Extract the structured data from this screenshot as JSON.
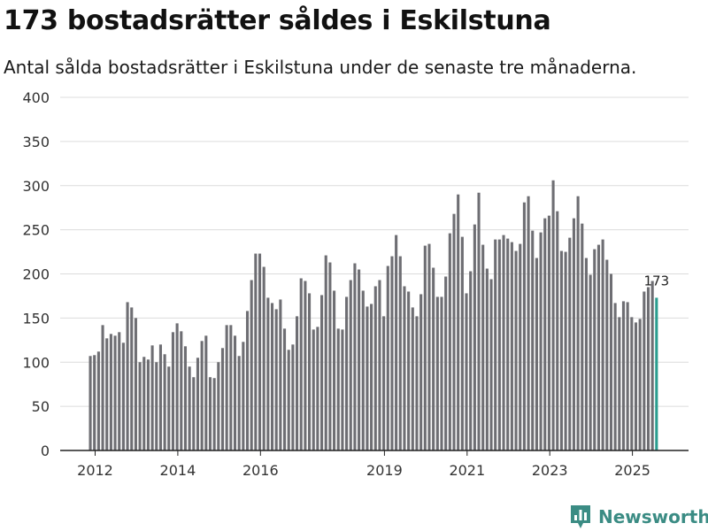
{
  "header": {
    "title": "173 bostadsrätter såldes i Eskilstuna",
    "subtitle": "Antal sålda bostadsrätter i Eskilstuna under de senaste tre månaderna."
  },
  "brand": {
    "name": "Newsworthy",
    "logo_icon": "bar-chart-icon",
    "color": "#3b8c84"
  },
  "chart_data": {
    "type": "bar",
    "title": "173 bostadsrätter såldes i Eskilstuna",
    "xlabel": "",
    "ylabel": "",
    "ylim": [
      0,
      400
    ],
    "yticks": [
      0,
      50,
      100,
      150,
      200,
      250,
      300,
      350,
      400
    ],
    "xticks": [
      "2012",
      "2014",
      "2016",
      "2019",
      "2021",
      "2023",
      "2025"
    ],
    "xtick_positions": [
      1.5,
      21.5,
      41.5,
      71.5,
      91.5,
      111.5,
      131.5
    ],
    "grid": true,
    "bar_color": "#6e6e73",
    "highlight_color": "#2a9d8f",
    "annotation": {
      "label": "173",
      "index": 137
    },
    "values": [
      107,
      108,
      112,
      142,
      127,
      132,
      130,
      134,
      122,
      168,
      162,
      150,
      100,
      106,
      103,
      119,
      100,
      120,
      109,
      95,
      134,
      144,
      135,
      118,
      95,
      83,
      105,
      124,
      130,
      83,
      82,
      100,
      116,
      142,
      142,
      130,
      107,
      123,
      158,
      193,
      223,
      223,
      208,
      173,
      167,
      160,
      171,
      138,
      114,
      120,
      152,
      195,
      192,
      178,
      137,
      140,
      176,
      221,
      213,
      181,
      138,
      137,
      174,
      193,
      212,
      205,
      181,
      163,
      166,
      186,
      193,
      152,
      209,
      220,
      244,
      220,
      186,
      180,
      162,
      152,
      177,
      232,
      234,
      207,
      174,
      174,
      197,
      246,
      268,
      290,
      242,
      178,
      203,
      256,
      292,
      233,
      206,
      194,
      239,
      239,
      244,
      240,
      236,
      226,
      234,
      281,
      288,
      249,
      218,
      247,
      263,
      266,
      306,
      271,
      226,
      225,
      241,
      263,
      288,
      257,
      218,
      199,
      228,
      233,
      239,
      216,
      200,
      167,
      151,
      169,
      168,
      151,
      145,
      149,
      180,
      185,
      192,
      173
    ]
  }
}
